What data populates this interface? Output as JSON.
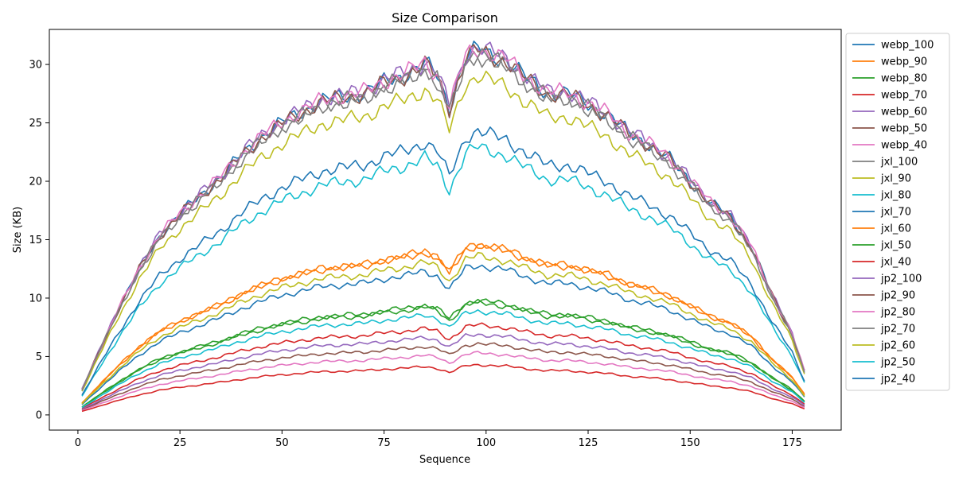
{
  "chart_data": {
    "type": "line",
    "title": "Size Comparison",
    "xlabel": "Sequence",
    "ylabel": "Size (KB)",
    "xlim": [
      -7,
      187
    ],
    "ylim": [
      -1.3,
      33
    ],
    "xticks": [
      0,
      25,
      50,
      75,
      100,
      125,
      150,
      175
    ],
    "yticks": [
      0,
      5,
      10,
      15,
      20,
      25,
      30
    ],
    "grid": false,
    "legend_placement": "outside-right-top",
    "x_start": 1,
    "x_end": 178,
    "shape_keyframes": {
      "x": [
        1,
        5,
        10,
        15,
        20,
        25,
        30,
        35,
        40,
        45,
        50,
        55,
        60,
        65,
        70,
        75,
        80,
        85,
        88,
        91,
        95,
        98,
        100,
        105,
        110,
        115,
        120,
        125,
        130,
        135,
        140,
        145,
        150,
        155,
        160,
        165,
        170,
        175,
        178
      ],
      "factor": [
        0.07,
        0.17,
        0.29,
        0.4,
        0.49,
        0.55,
        0.6,
        0.65,
        0.71,
        0.76,
        0.8,
        0.83,
        0.86,
        0.87,
        0.88,
        0.91,
        0.93,
        0.96,
        0.93,
        0.84,
        0.98,
        1.0,
        0.99,
        0.97,
        0.92,
        0.88,
        0.88,
        0.85,
        0.82,
        0.77,
        0.74,
        0.7,
        0.64,
        0.58,
        0.54,
        0.46,
        0.33,
        0.22,
        0.12
      ]
    },
    "series": [
      {
        "name": "webp_100",
        "color": "#1f77b4",
        "scale": 31.3
      },
      {
        "name": "webp_90",
        "color": "#ff7f0e",
        "scale": 14.6
      },
      {
        "name": "webp_80",
        "color": "#2ca02c",
        "scale": 9.8
      },
      {
        "name": "webp_70",
        "color": "#d62728",
        "scale": 7.7
      },
      {
        "name": "webp_60",
        "color": "#9467bd",
        "scale": 6.9
      },
      {
        "name": "webp_50",
        "color": "#8c564b",
        "scale": 6.1
      },
      {
        "name": "webp_40",
        "color": "#e377c2",
        "scale": 5.3
      },
      {
        "name": "jxl_100",
        "color": "#7f7f7f",
        "scale": 30.8
      },
      {
        "name": "jxl_90",
        "color": "#bcbd22",
        "scale": 29.0
      },
      {
        "name": "jxl_80",
        "color": "#17becf",
        "scale": 22.9
      },
      {
        "name": "jxl_70",
        "color": "#1f77b4",
        "scale": 12.8
      },
      {
        "name": "jxl_60",
        "color": "#ff7f0e",
        "scale": 14.5
      },
      {
        "name": "jxl_50",
        "color": "#2ca02c",
        "scale": 9.6
      },
      {
        "name": "jxl_40",
        "color": "#d62728",
        "scale": 4.3
      },
      {
        "name": "jp2_100",
        "color": "#9467bd",
        "scale": 31.5
      },
      {
        "name": "jp2_90",
        "color": "#8c564b",
        "scale": 31.2
      },
      {
        "name": "jp2_80",
        "color": "#e377c2",
        "scale": 31.4
      },
      {
        "name": "jp2_70",
        "color": "#7f7f7f",
        "scale": 30.9
      },
      {
        "name": "jp2_60",
        "color": "#bcbd22",
        "scale": 13.6
      },
      {
        "name": "jp2_50",
        "color": "#17becf",
        "scale": 8.9
      },
      {
        "name": "jp2_40",
        "color": "#1f77b4",
        "scale": 24.3
      }
    ]
  }
}
